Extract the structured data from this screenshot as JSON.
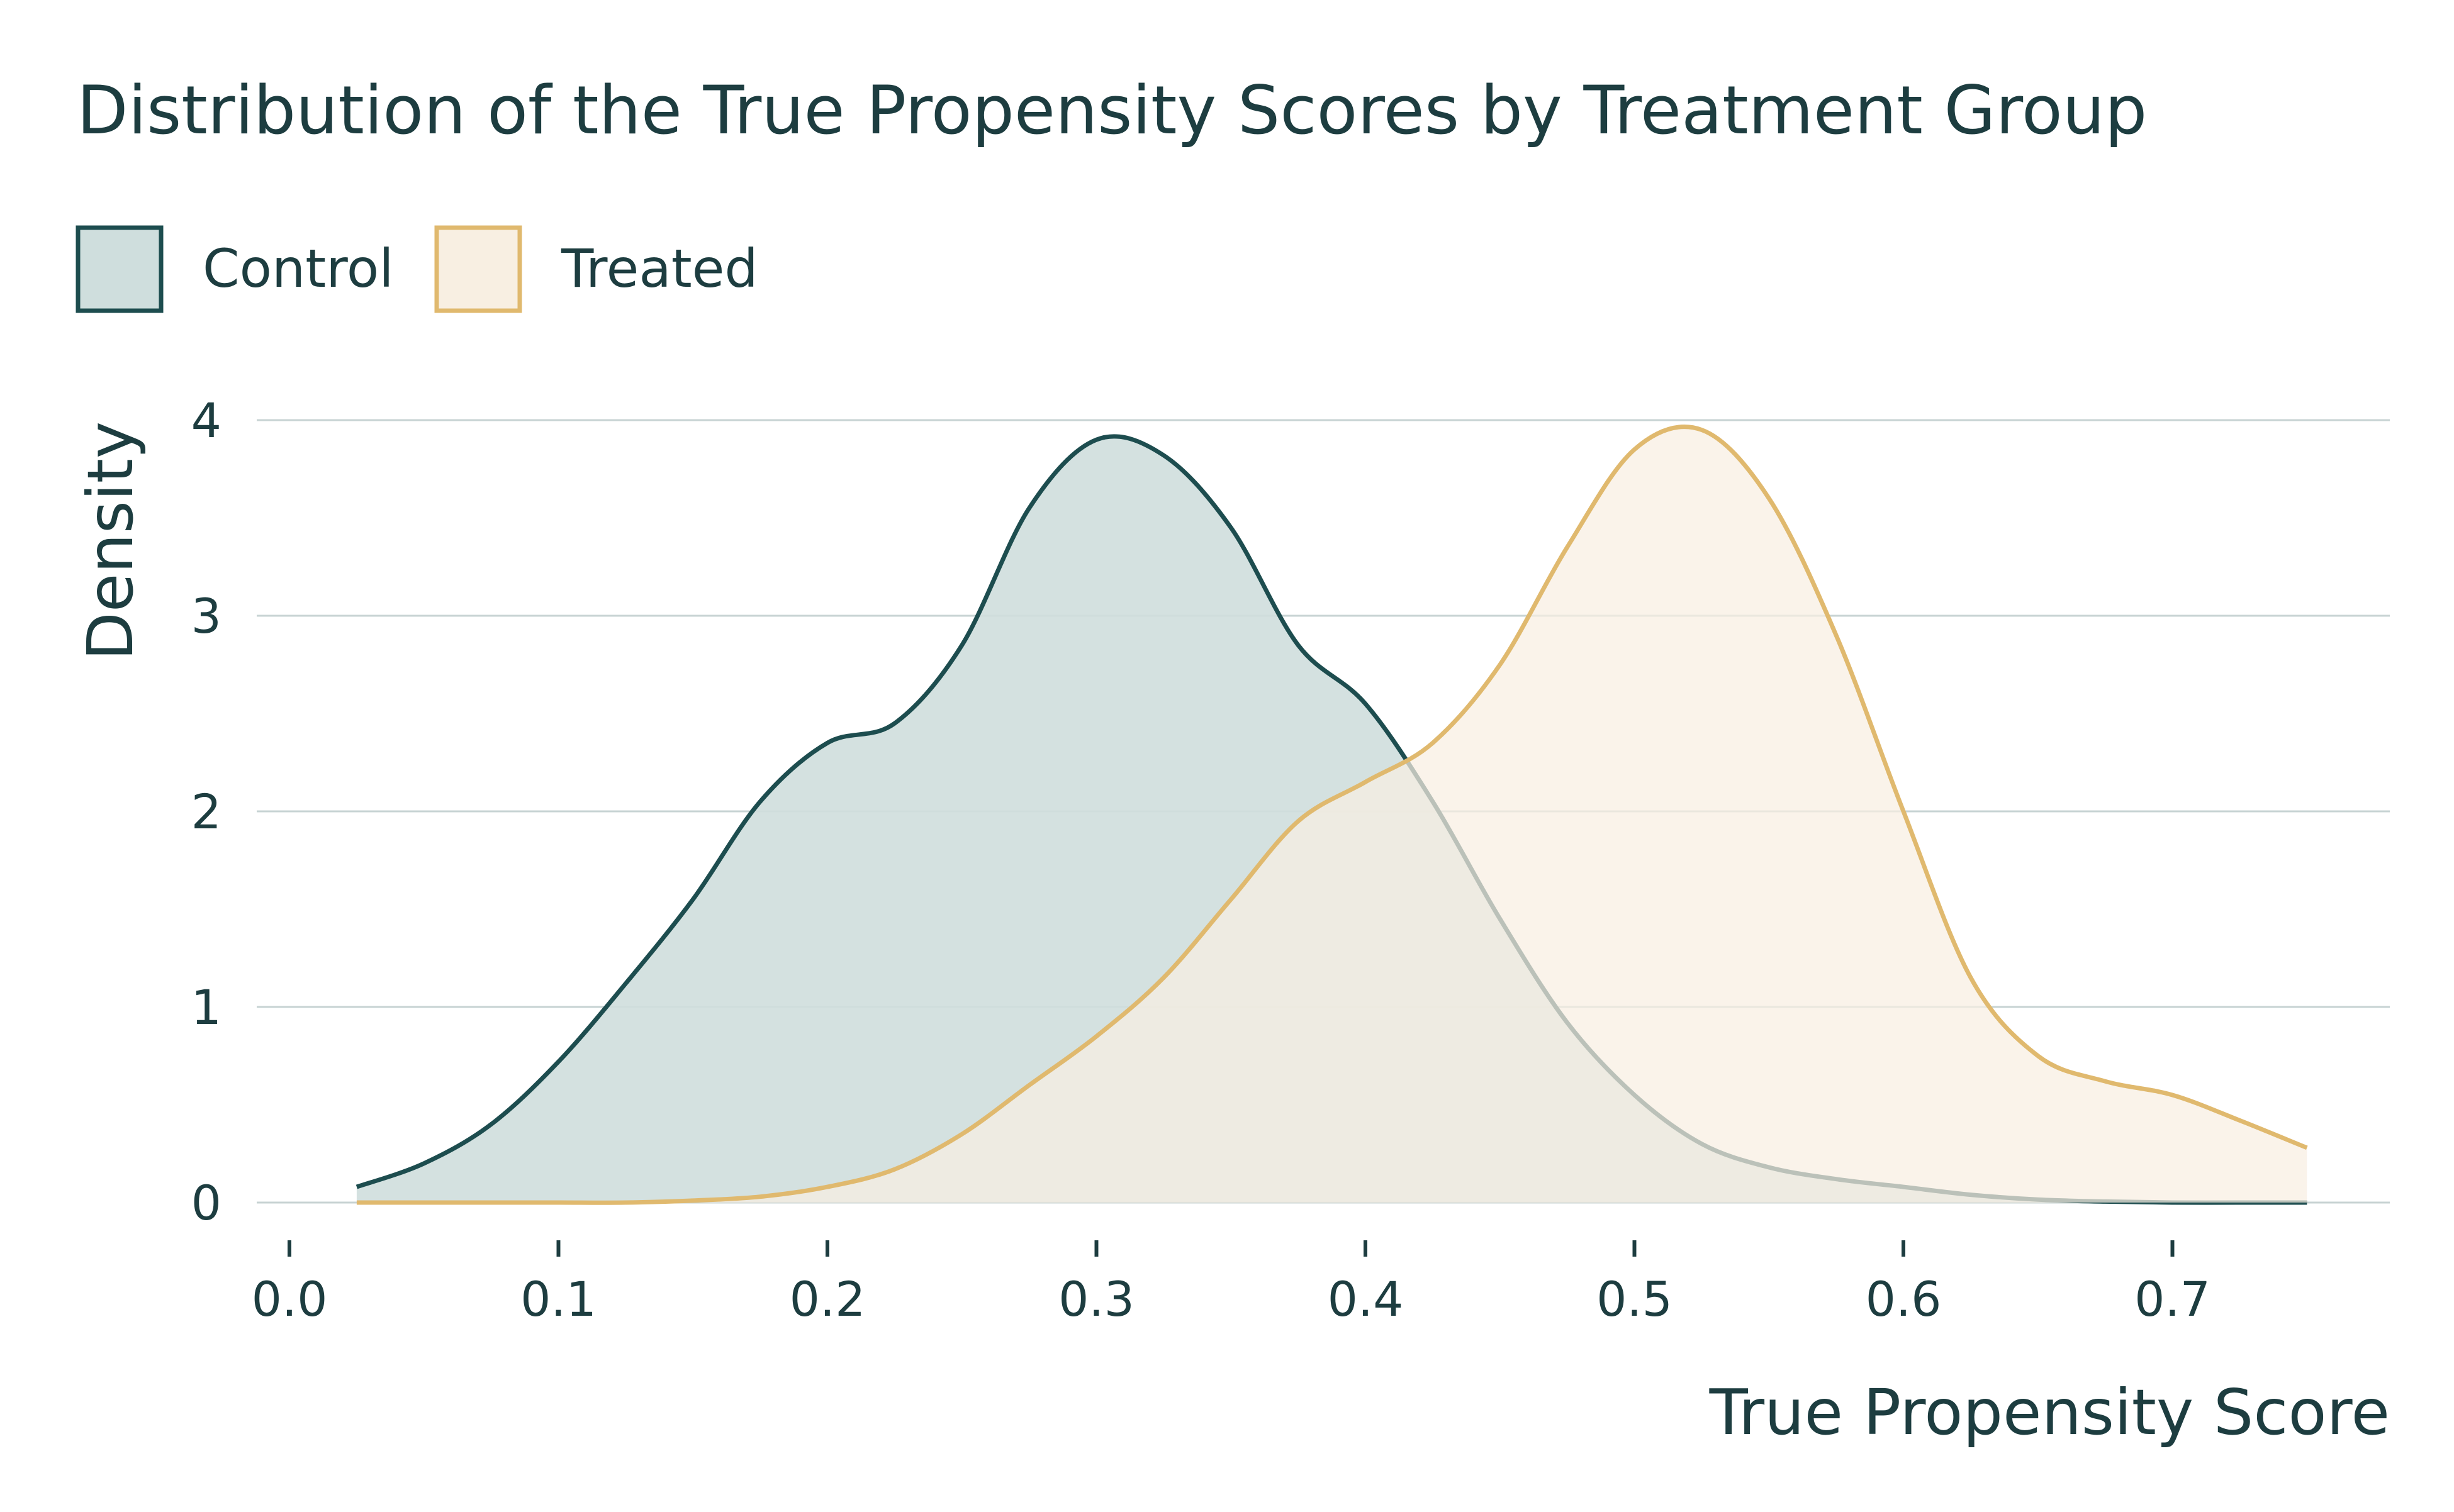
{
  "chart_data": {
    "type": "area",
    "title": "Distribution of the True Propensity Scores by Treatment Group",
    "xlabel": "True Propensity Score",
    "ylabel": "Density",
    "xlim": [
      0.0,
      0.75
    ],
    "ylim": [
      0,
      4
    ],
    "x_ticks": [
      "0.0",
      "0.1",
      "0.2",
      "0.3",
      "0.4",
      "0.5",
      "0.6",
      "0.7"
    ],
    "y_ticks": [
      "0",
      "1",
      "2",
      "3",
      "4"
    ],
    "grid": "horizontal",
    "legend_position": "top-left",
    "colors": {
      "control_line": "#1d4d4f",
      "control_fill": "#cfdedd",
      "treated_line": "#e0b96e",
      "treated_fill": "#f8efe2",
      "grid": "#c7d3d3",
      "text": "#1d3d40"
    },
    "series": [
      {
        "name": "Control",
        "x": [
          0.025,
          0.05,
          0.075,
          0.1,
          0.125,
          0.15,
          0.175,
          0.2,
          0.225,
          0.25,
          0.275,
          0.3,
          0.325,
          0.35,
          0.375,
          0.4,
          0.425,
          0.45,
          0.475,
          0.5,
          0.525,
          0.55,
          0.575,
          0.6,
          0.625,
          0.65,
          0.675,
          0.7,
          0.725,
          0.75
        ],
        "values": [
          0.08,
          0.2,
          0.4,
          0.72,
          1.12,
          1.55,
          2.05,
          2.35,
          2.45,
          2.85,
          3.55,
          3.9,
          3.82,
          3.45,
          2.85,
          2.55,
          2.05,
          1.45,
          0.92,
          0.55,
          0.3,
          0.18,
          0.12,
          0.08,
          0.04,
          0.015,
          0.005,
          0.0,
          0.0,
          0.0
        ]
      },
      {
        "name": "Treated",
        "x": [
          0.025,
          0.05,
          0.075,
          0.1,
          0.125,
          0.15,
          0.175,
          0.2,
          0.225,
          0.25,
          0.275,
          0.3,
          0.325,
          0.35,
          0.375,
          0.4,
          0.425,
          0.45,
          0.475,
          0.5,
          0.525,
          0.55,
          0.575,
          0.6,
          0.625,
          0.65,
          0.675,
          0.7,
          0.725,
          0.75
        ],
        "values": [
          0.0,
          0.0,
          0.0,
          0.0,
          0.0,
          0.01,
          0.03,
          0.08,
          0.17,
          0.35,
          0.6,
          0.85,
          1.15,
          1.55,
          1.95,
          2.15,
          2.35,
          2.75,
          3.35,
          3.85,
          3.95,
          3.6,
          2.9,
          2.0,
          1.15,
          0.75,
          0.62,
          0.55,
          0.42,
          0.28
        ]
      }
    ]
  }
}
